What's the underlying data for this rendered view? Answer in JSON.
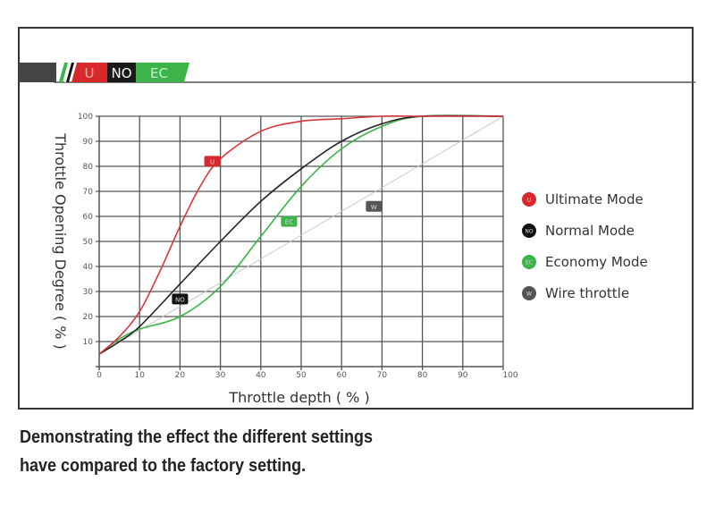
{
  "logo": {
    "segments": [
      "U",
      "NO",
      "EC"
    ],
    "colors": [
      "#d9282b",
      "#1a1a1a",
      "#3cb44a"
    ]
  },
  "chart_data": {
    "type": "line",
    "title": "",
    "xlabel": "Throttle depth ( % )",
    "ylabel": "Throttle Opening Degree ( % )",
    "xlim": [
      0,
      100
    ],
    "ylim": [
      0,
      100
    ],
    "xticks": [
      0,
      10,
      20,
      30,
      40,
      50,
      60,
      70,
      80,
      90,
      100
    ],
    "yticks": [
      10,
      20,
      30,
      40,
      50,
      60,
      70,
      80,
      90,
      100
    ],
    "grid": true,
    "legend_position": "right",
    "series": [
      {
        "name": "Ultimate Mode",
        "tag": "U",
        "color": "#d9363a",
        "tag_at": [
          28,
          82
        ],
        "x": [
          0,
          5,
          10,
          15,
          20,
          25,
          30,
          40,
          50,
          60,
          70,
          80,
          100
        ],
        "y": [
          5,
          12,
          22,
          38,
          56,
          72,
          83,
          94,
          98,
          99,
          100,
          100,
          100
        ]
      },
      {
        "name": "Normal Mode",
        "tag": "NO",
        "color": "#222222",
        "tag_at": [
          20,
          27
        ],
        "x": [
          0,
          5,
          10,
          20,
          30,
          40,
          50,
          60,
          70,
          80,
          100
        ],
        "y": [
          5,
          10,
          16,
          33,
          50,
          66,
          79,
          90,
          97,
          100,
          100
        ]
      },
      {
        "name": "Economy Mode",
        "tag": "EC",
        "color": "#3cb44a",
        "tag_at": [
          47,
          58
        ],
        "x": [
          0,
          5,
          10,
          20,
          30,
          40,
          50,
          60,
          70,
          80,
          100
        ],
        "y": [
          5,
          11,
          15,
          20,
          32,
          52,
          72,
          87,
          96,
          100,
          100
        ]
      },
      {
        "name": "Wire throttle",
        "tag": "W",
        "color": "#c8c8c8",
        "tag_at": [
          68,
          64
        ],
        "x": [
          0,
          100
        ],
        "y": [
          5,
          100
        ]
      }
    ],
    "legend_colors": [
      "#d9282b",
      "#111111",
      "#3cb44a",
      "#555555"
    ]
  },
  "caption": {
    "line1": "Demonstrating the effect the different settings",
    "line2": "have compared to the factory setting."
  }
}
